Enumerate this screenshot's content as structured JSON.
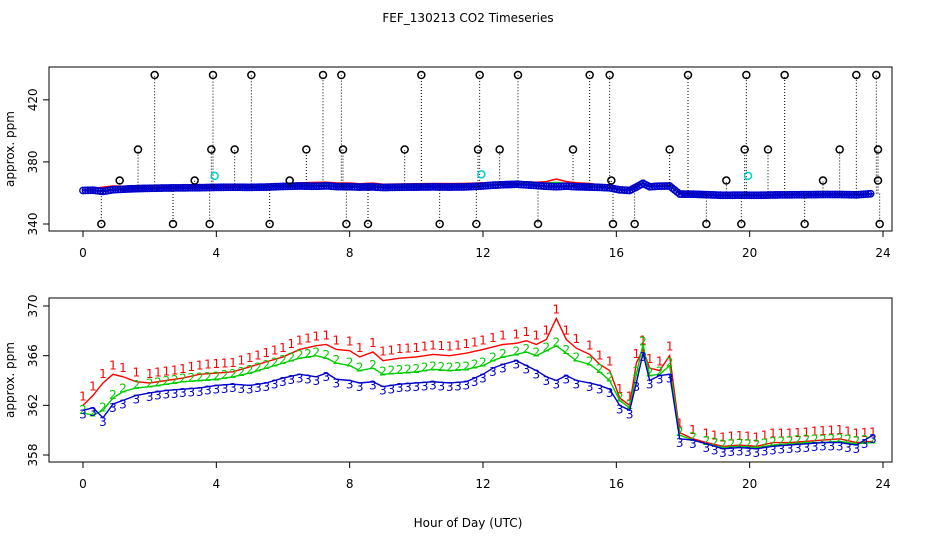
{
  "title": "FEF_130213  CO2 Timeseries",
  "xlabel": "Hour of Day (UTC)",
  "colors": {
    "series1": "#ff0000",
    "series2": "#00cc00",
    "series3": "#0000cc",
    "raw": "#000000",
    "flagged": "#00cccc",
    "axis": "#000000"
  },
  "chart_data": [
    {
      "type": "scatter",
      "panel": "top",
      "ylabel": "approx. ppm",
      "xlim": [
        0,
        24
      ],
      "ylim": [
        340,
        436
      ],
      "xticks": [
        0,
        4,
        8,
        12,
        16,
        20,
        24
      ],
      "yticks": [
        340,
        380,
        420
      ],
      "rails": {
        "high": 436,
        "mid": 388,
        "low": 340,
        "high_hours": [
          2.15,
          3.9,
          5.05,
          7.2,
          7.75,
          10.15,
          11.9,
          13.05,
          15.2,
          15.8,
          18.15,
          19.9,
          21.05,
          23.2,
          23.8
        ],
        "mid_hours": [
          1.65,
          3.85,
          4.55,
          6.7,
          7.8,
          9.65,
          11.85,
          12.5,
          14.7,
          17.6,
          19.85,
          20.55,
          22.7,
          23.85
        ],
        "low_hours": [
          0.55,
          2.7,
          3.8,
          5.6,
          7.9,
          8.55,
          10.7,
          11.8,
          13.65,
          15.9,
          16.55,
          18.7,
          19.75,
          21.65,
          23.9
        ]
      },
      "flagged": [
        {
          "hour": 3.95,
          "ppm": 371
        },
        {
          "hour": 11.95,
          "ppm": 372
        },
        {
          "hour": 19.95,
          "ppm": 371
        }
      ]
    },
    {
      "type": "line",
      "panel": "bottom",
      "ylabel": "approx. ppm",
      "xlim": [
        0,
        24
      ],
      "ylim": [
        358,
        370
      ],
      "xticks": [
        0,
        4,
        8,
        12,
        16,
        20,
        24
      ],
      "yticks": [
        358,
        362,
        366,
        370
      ],
      "series": [
        {
          "name": "1",
          "hours": [
            0,
            0.3,
            0.6,
            0.9,
            1.2,
            1.6,
            2.0,
            2.5,
            3.0,
            3.5,
            4.0,
            4.5,
            5.0,
            5.5,
            6.0,
            6.5,
            7.0,
            7.3,
            7.6,
            8.0,
            8.3,
            8.7,
            9.0,
            9.5,
            10.0,
            10.5,
            11.0,
            11.5,
            12.0,
            12.3,
            12.6,
            13.0,
            13.3,
            13.6,
            13.9,
            14.2,
            14.5,
            14.8,
            15.2,
            15.5,
            15.8,
            16.1,
            16.4,
            16.6,
            16.8,
            17.0,
            17.3,
            17.6,
            17.9,
            18.3,
            18.7,
            19.2,
            19.7,
            20.2,
            20.7,
            21.2,
            21.7,
            22.2,
            22.7,
            23.2,
            23.7
          ],
          "values": [
            362.0,
            362.8,
            363.8,
            364.5,
            364.3,
            363.9,
            363.8,
            364.0,
            364.2,
            364.5,
            364.6,
            364.7,
            365.1,
            365.5,
            365.9,
            366.5,
            366.8,
            366.9,
            366.5,
            366.4,
            365.9,
            366.3,
            365.6,
            365.8,
            365.9,
            366.1,
            366.0,
            366.2,
            366.5,
            366.7,
            366.9,
            367.0,
            367.2,
            366.9,
            367.3,
            369.0,
            367.3,
            366.6,
            366.1,
            365.3,
            364.8,
            362.6,
            362.0,
            365.4,
            366.5,
            365.0,
            364.8,
            366.0,
            359.8,
            359.3,
            359.0,
            358.7,
            358.8,
            358.7,
            359.0,
            359.0,
            359.1,
            359.2,
            359.3,
            359.0,
            359.1
          ]
        },
        {
          "name": "2",
          "hours": [
            0,
            0.3,
            0.6,
            0.9,
            1.2,
            1.6,
            2.0,
            2.5,
            3.0,
            3.5,
            4.0,
            4.5,
            5.0,
            5.5,
            6.0,
            6.5,
            7.0,
            7.3,
            7.6,
            8.0,
            8.3,
            8.7,
            9.0,
            9.5,
            10.0,
            10.5,
            11.0,
            11.5,
            12.0,
            12.3,
            12.6,
            13.0,
            13.3,
            13.6,
            13.9,
            14.2,
            14.5,
            14.8,
            15.2,
            15.5,
            15.8,
            16.1,
            16.4,
            16.6,
            16.8,
            17.0,
            17.3,
            17.6,
            17.9,
            18.3,
            18.7,
            19.2,
            19.7,
            20.2,
            20.7,
            21.2,
            21.7,
            22.2,
            22.7,
            23.2,
            23.7
          ],
          "values": [
            361.4,
            361.2,
            361.6,
            362.6,
            363.1,
            363.4,
            363.5,
            363.7,
            363.9,
            364.0,
            364.1,
            364.3,
            364.6,
            365.0,
            365.4,
            365.8,
            366.0,
            365.8,
            365.4,
            365.2,
            364.8,
            365.0,
            364.5,
            364.6,
            364.7,
            364.9,
            364.8,
            364.9,
            365.2,
            365.6,
            365.9,
            366.1,
            366.3,
            366.0,
            366.4,
            366.8,
            366.2,
            365.6,
            365.3,
            364.7,
            364.0,
            362.4,
            361.8,
            364.5,
            366.9,
            364.4,
            364.5,
            365.2,
            359.6,
            359.2,
            358.9,
            358.6,
            358.7,
            358.6,
            358.8,
            358.9,
            359.0,
            359.0,
            359.1,
            358.9,
            359.0
          ]
        },
        {
          "name": "3",
          "hours": [
            0,
            0.3,
            0.6,
            0.9,
            1.2,
            1.6,
            2.0,
            2.5,
            3.0,
            3.5,
            4.0,
            4.5,
            5.0,
            5.5,
            6.0,
            6.5,
            7.0,
            7.3,
            7.6,
            8.0,
            8.3,
            8.7,
            9.0,
            9.5,
            10.0,
            10.5,
            11.0,
            11.5,
            12.0,
            12.3,
            12.6,
            13.0,
            13.3,
            13.6,
            13.9,
            14.2,
            14.5,
            14.8,
            15.2,
            15.5,
            15.8,
            16.1,
            16.4,
            16.6,
            16.8,
            17.0,
            17.3,
            17.6,
            17.9,
            18.3,
            18.7,
            19.2,
            19.7,
            20.2,
            20.7,
            21.2,
            21.7,
            22.2,
            22.7,
            23.2,
            23.7
          ],
          "values": [
            361.6,
            361.8,
            361.0,
            362.1,
            362.4,
            362.8,
            363.0,
            363.2,
            363.3,
            363.4,
            363.6,
            363.7,
            363.6,
            363.8,
            364.2,
            364.5,
            364.3,
            364.6,
            364.1,
            364.0,
            363.8,
            363.9,
            363.5,
            363.7,
            363.8,
            363.9,
            363.8,
            363.9,
            364.5,
            365.0,
            365.3,
            365.6,
            365.2,
            364.8,
            364.3,
            364.0,
            364.4,
            364.0,
            363.8,
            363.6,
            363.3,
            362.0,
            361.6,
            363.8,
            366.2,
            364.0,
            364.4,
            364.5,
            359.3,
            359.2,
            358.9,
            358.5,
            358.6,
            358.5,
            358.7,
            358.8,
            358.9,
            359.0,
            359.0,
            358.8,
            359.6
          ]
        }
      ]
    }
  ]
}
